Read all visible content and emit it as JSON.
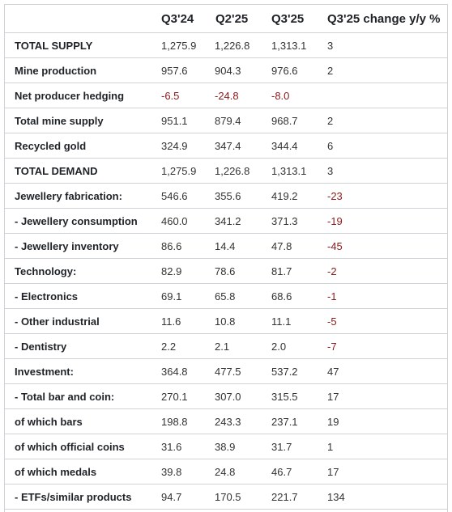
{
  "table": {
    "headers": [
      "",
      "Q3'24",
      "Q2'25",
      "Q3'25",
      "Q3'25 change y/y %"
    ],
    "rows": [
      {
        "label": "TOTAL SUPPLY",
        "values": [
          "1,275.9",
          "1,226.8",
          "1,313.1",
          "3"
        ]
      },
      {
        "label": "Mine production",
        "values": [
          "957.6",
          "904.3",
          "976.6",
          "2"
        ]
      },
      {
        "label": "Net producer hedging",
        "values": [
          "-6.5",
          "-24.8",
          "-8.0",
          ""
        ]
      },
      {
        "label": "Total mine supply",
        "values": [
          "951.1",
          "879.4",
          "968.7",
          "2"
        ]
      },
      {
        "label": "Recycled gold",
        "values": [
          "324.9",
          "347.4",
          "344.4",
          "6"
        ]
      },
      {
        "label": "TOTAL DEMAND",
        "values": [
          "1,275.9",
          "1,226.8",
          "1,313.1",
          "3"
        ]
      },
      {
        "label": "Jewellery fabrication:",
        "values": [
          "546.6",
          "355.6",
          "419.2",
          "-23"
        ]
      },
      {
        "label": "- Jewellery consumption",
        "values": [
          "460.0",
          "341.2",
          "371.3",
          "-19"
        ]
      },
      {
        "label": "- Jewellery inventory",
        "values": [
          "86.6",
          "14.4",
          "47.8",
          "-45"
        ]
      },
      {
        "label": "Technology:",
        "values": [
          "82.9",
          "78.6",
          "81.7",
          "-2"
        ]
      },
      {
        "label": "- Electronics",
        "values": [
          "69.1",
          "65.8",
          "68.6",
          "-1"
        ]
      },
      {
        "label": "- Other industrial",
        "values": [
          "11.6",
          "10.8",
          "11.1",
          "-5"
        ]
      },
      {
        "label": "- Dentistry",
        "values": [
          "2.2",
          "2.1",
          "2.0",
          "-7"
        ]
      },
      {
        "label": "Investment:",
        "values": [
          "364.8",
          "477.5",
          "537.2",
          "47"
        ]
      },
      {
        "label": "- Total bar and coin:",
        "values": [
          "270.1",
          "307.0",
          "315.5",
          "17"
        ]
      },
      {
        "label": "of which bars",
        "values": [
          "198.8",
          "243.3",
          "237.1",
          "19"
        ]
      },
      {
        "label": "of which official coins",
        "values": [
          "31.6",
          "38.9",
          "31.7",
          "1"
        ]
      },
      {
        "label": "of which medals",
        "values": [
          "39.8",
          "24.8",
          "46.7",
          "17"
        ]
      },
      {
        "label": "- ETFs/similar products",
        "values": [
          "94.7",
          "170.5",
          "221.7",
          "134"
        ]
      }
    ]
  },
  "colors": {
    "text": "#1f2328",
    "negative": "#8b1a1a",
    "border": "#cfd3d7"
  }
}
